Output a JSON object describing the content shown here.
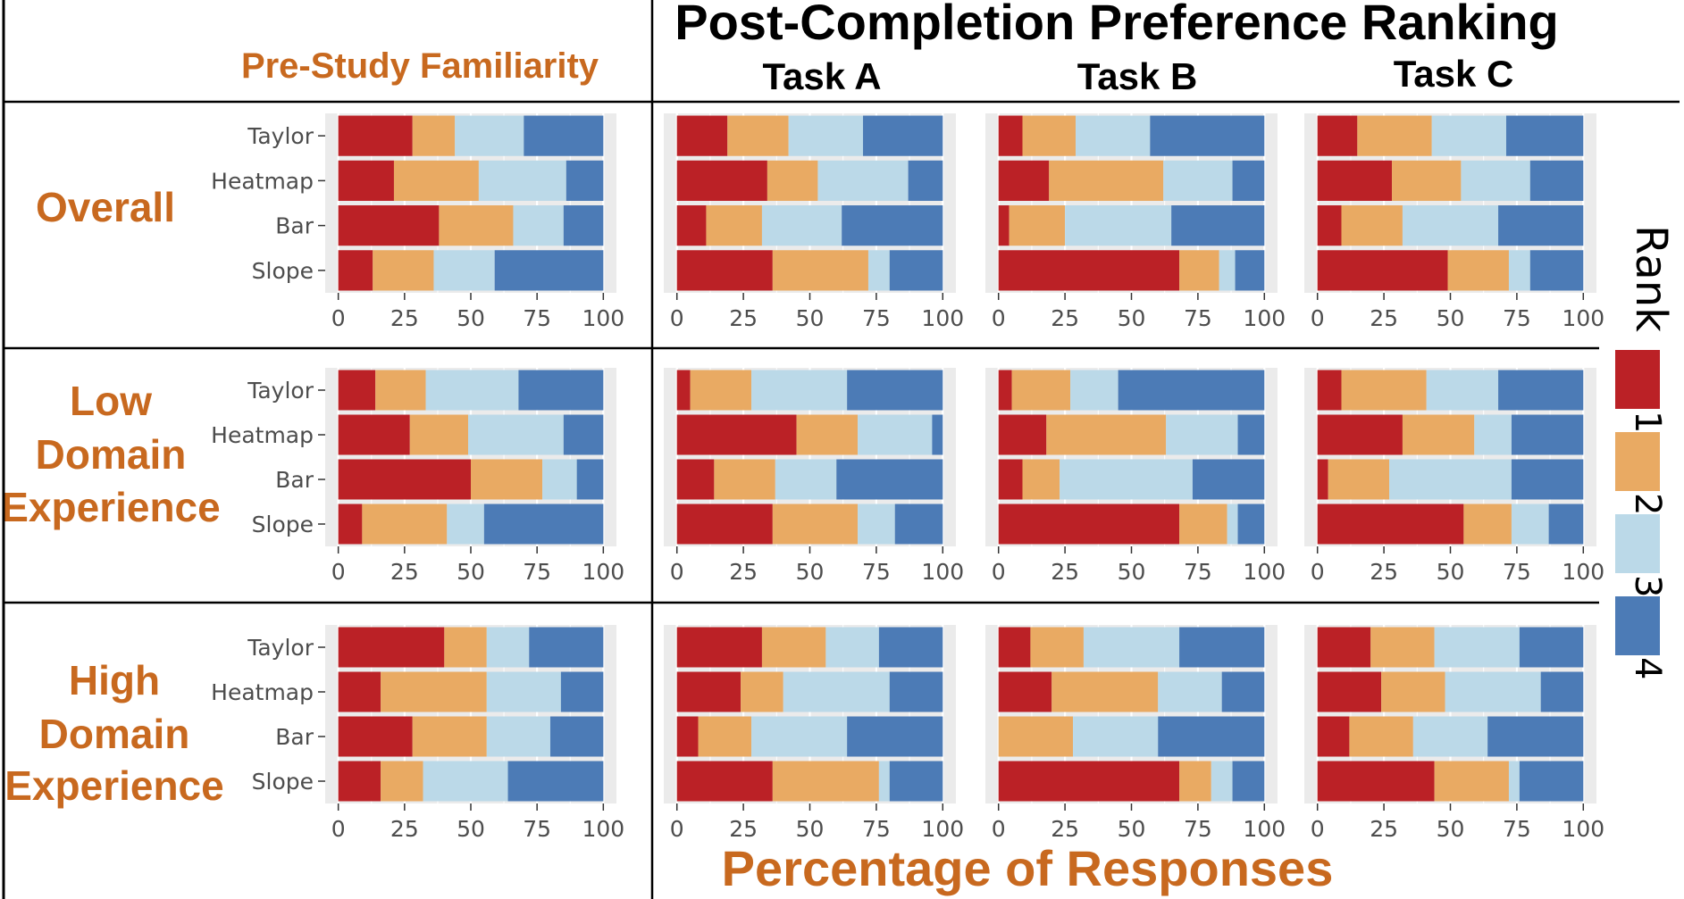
{
  "title": "Post-Completion Preference Ranking",
  "familiarity_header": "Pre-Study Familiarity",
  "task_headers": [
    "Task A",
    "Task B",
    "Task C"
  ],
  "row_labels": [
    [
      "Overall"
    ],
    [
      "Low",
      "Domain",
      "Experience"
    ],
    [
      "High",
      "Domain",
      "Experience"
    ]
  ],
  "xlabel": "Percentage of Responses",
  "legend": {
    "title": "Rank",
    "items": [
      {
        "label": "1",
        "color": "#bb2126"
      },
      {
        "label": "2",
        "color": "#e9aa63"
      },
      {
        "label": "3",
        "color": "#bbd9e8"
      },
      {
        "label": "4",
        "color": "#4c7bb6"
      }
    ]
  },
  "chart_data": {
    "type": "bar",
    "orientation": "horizontal",
    "stacked": true,
    "categories": [
      "Taylor",
      "Heatmap",
      "Bar",
      "Slope"
    ],
    "xlim": [
      0,
      100
    ],
    "xticks": [
      "0",
      "25",
      "50",
      "75",
      "100"
    ],
    "series_names": [
      "1",
      "2",
      "3",
      "4"
    ],
    "grid": true,
    "legend_position": "right",
    "panels": [
      {
        "row": "Overall",
        "col": "Pre-Study Familiarity",
        "values": [
          [
            28,
            16,
            26,
            30
          ],
          [
            21,
            32,
            33,
            14
          ],
          [
            38,
            28,
            19,
            15
          ],
          [
            13,
            23,
            23,
            41
          ]
        ]
      },
      {
        "row": "Overall",
        "col": "Task A",
        "values": [
          [
            19,
            23,
            28,
            30
          ],
          [
            34,
            19,
            34,
            13
          ],
          [
            11,
            21,
            30,
            38
          ],
          [
            36,
            36,
            8,
            20
          ]
        ]
      },
      {
        "row": "Overall",
        "col": "Task B",
        "values": [
          [
            9,
            20,
            28,
            43
          ],
          [
            19,
            43,
            26,
            12
          ],
          [
            4,
            21,
            40,
            35
          ],
          [
            68,
            15,
            6,
            11
          ]
        ]
      },
      {
        "row": "Overall",
        "col": "Task C",
        "values": [
          [
            15,
            28,
            28,
            29
          ],
          [
            28,
            26,
            26,
            20
          ],
          [
            9,
            23,
            36,
            32
          ],
          [
            49,
            23,
            8,
            20
          ]
        ]
      },
      {
        "row": "Low Domain Experience",
        "col": "Pre-Study Familiarity",
        "values": [
          [
            14,
            19,
            35,
            32
          ],
          [
            27,
            22,
            36,
            15
          ],
          [
            50,
            27,
            13,
            10
          ],
          [
            9,
            32,
            14,
            45
          ]
        ]
      },
      {
        "row": "Low Domain Experience",
        "col": "Task A",
        "values": [
          [
            5,
            23,
            36,
            36
          ],
          [
            45,
            23,
            28,
            4
          ],
          [
            14,
            23,
            23,
            40
          ],
          [
            36,
            32,
            14,
            18
          ]
        ]
      },
      {
        "row": "Low Domain Experience",
        "col": "Task B",
        "values": [
          [
            5,
            22,
            18,
            55
          ],
          [
            18,
            45,
            27,
            10
          ],
          [
            9,
            14,
            50,
            27
          ],
          [
            68,
            18,
            4,
            10
          ]
        ]
      },
      {
        "row": "Low Domain Experience",
        "col": "Task C",
        "values": [
          [
            9,
            32,
            27,
            32
          ],
          [
            32,
            27,
            14,
            27
          ],
          [
            4,
            23,
            46,
            27
          ],
          [
            55,
            18,
            14,
            13
          ]
        ]
      },
      {
        "row": "High Domain Experience",
        "col": "Pre-Study Familiarity",
        "values": [
          [
            40,
            16,
            16,
            28
          ],
          [
            16,
            40,
            28,
            16
          ],
          [
            28,
            28,
            24,
            20
          ],
          [
            16,
            16,
            32,
            36
          ]
        ]
      },
      {
        "row": "High Domain Experience",
        "col": "Task A",
        "values": [
          [
            32,
            24,
            20,
            24
          ],
          [
            24,
            16,
            40,
            20
          ],
          [
            8,
            20,
            36,
            36
          ],
          [
            36,
            40,
            4,
            20
          ]
        ]
      },
      {
        "row": "High Domain Experience",
        "col": "Task B",
        "values": [
          [
            12,
            20,
            36,
            32
          ],
          [
            20,
            40,
            24,
            16
          ],
          [
            0,
            28,
            32,
            40
          ],
          [
            68,
            12,
            8,
            12
          ]
        ]
      },
      {
        "row": "High Domain Experience",
        "col": "Task C",
        "values": [
          [
            20,
            24,
            32,
            24
          ],
          [
            24,
            24,
            36,
            16
          ],
          [
            12,
            24,
            28,
            36
          ],
          [
            44,
            28,
            4,
            24
          ]
        ]
      }
    ]
  }
}
